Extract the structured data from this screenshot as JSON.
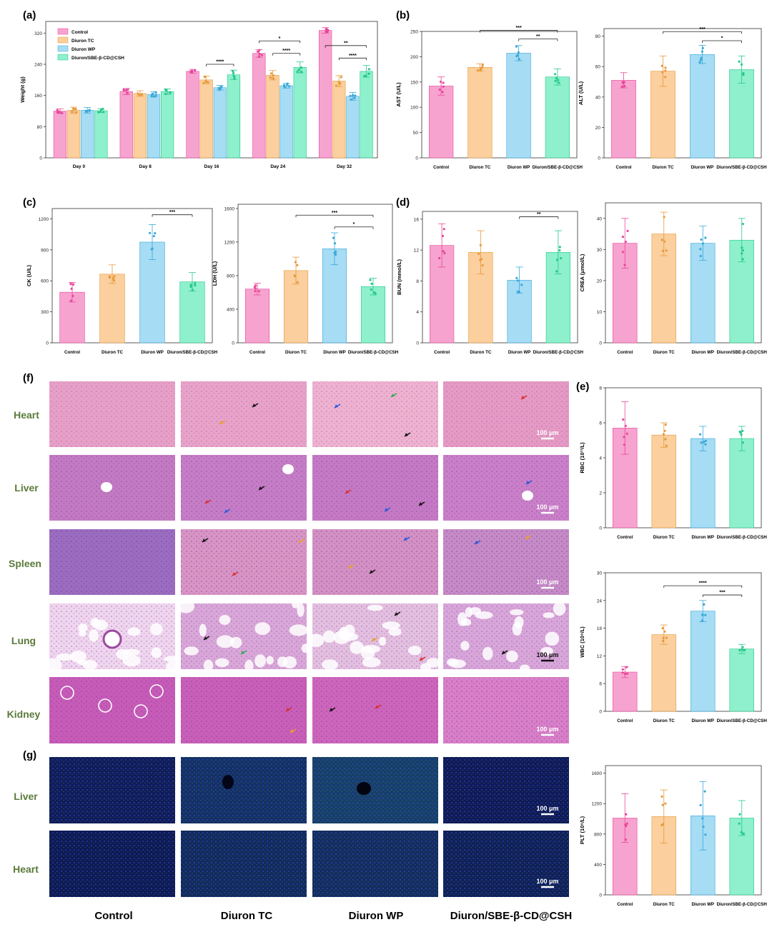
{
  "colors": {
    "Control": "#f7a3cf",
    "Diuron TC": "#fbcf9e",
    "Diuron WP": "#a6dcf4",
    "Diuron/SBE-β-CD@CSH": "#8ef0cc",
    "Control_dark": "#e8479a",
    "Diuron TC_dark": "#e79a3c",
    "Diuron WP_dark": "#3aa8d8",
    "Diuron/SBE-β-CD@CSH_dark": "#28c88c",
    "row_label": "#5a7a3a"
  },
  "panel_labels": {
    "a": "(a)",
    "b": "(b)",
    "c": "(c)",
    "d": "(d)",
    "e": "(e)",
    "f": "(f)",
    "g": "(g)"
  },
  "histology": {
    "tissues": [
      "Heart",
      "Liver",
      "Spleen",
      "Lung",
      "Kidney"
    ],
    "scale_bar": "100 μm",
    "note_scale_4": "100 μm"
  },
  "fluorescence": {
    "tissues": [
      "Liver",
      "Heart"
    ],
    "scale_bar": "100 μm"
  },
  "column_labels": [
    "Control",
    "Diuron TC",
    "Diuron WP",
    "Diuron/SBE-β-CD@CSH"
  ],
  "chart_data": [
    {
      "id": "weight",
      "type": "bar",
      "panel": "(a)",
      "ylabel": "Weight (g)",
      "ylim": [
        0,
        350
      ],
      "yticks": [
        0,
        80,
        160,
        240,
        320
      ],
      "categories": [
        "Day 0",
        "Day 8",
        "Day 16",
        "Day 24",
        "Day 32"
      ],
      "legend": "top-left",
      "series": [
        {
          "name": "Control",
          "values": [
            120,
            170,
            222,
            268,
            327
          ],
          "err": [
            6,
            8,
            5,
            10,
            7
          ]
        },
        {
          "name": "Diuron TC",
          "values": [
            122,
            165,
            200,
            212,
            197
          ],
          "err": [
            8,
            7,
            10,
            12,
            14
          ]
        },
        {
          "name": "Diuron WP",
          "values": [
            122,
            163,
            180,
            185,
            158
          ],
          "err": [
            7,
            7,
            6,
            6,
            10
          ]
        },
        {
          "name": "Diuron/SBE-β-CD@CSH",
          "values": [
            121,
            170,
            213,
            232,
            222
          ],
          "err": [
            5,
            7,
            12,
            14,
            15
          ]
        }
      ],
      "sig": [
        {
          "x1": 2.18,
          "x2": 2.42,
          "y": 240,
          "label": "****"
        },
        {
          "x1": 3.0,
          "x2": 3.42,
          "y": 300,
          "label": "*"
        },
        {
          "x1": 3.18,
          "x2": 3.42,
          "y": 268,
          "label": "****"
        },
        {
          "x1": 4.0,
          "x2": 4.42,
          "y": 288,
          "label": "**"
        },
        {
          "x1": 4.18,
          "x2": 4.42,
          "y": 256,
          "label": "****"
        }
      ]
    },
    {
      "id": "ast",
      "type": "bar",
      "panel": "(b)",
      "ylabel": "AST (U/L)",
      "ylim": [
        0,
        250
      ],
      "yticks": [
        0,
        50,
        100,
        150,
        200,
        250
      ],
      "categories": [
        "Control",
        "Diuron TC",
        "Diuron WP",
        "Diuron/SBE-β-CD@CSH"
      ],
      "values": [
        142,
        179,
        207,
        160
      ],
      "err": [
        18,
        7,
        15,
        16
      ],
      "sig": [
        {
          "a": 1,
          "b": 3,
          "y": 252,
          "label": "***"
        },
        {
          "a": 2,
          "b": 3,
          "y": 235,
          "label": "**"
        }
      ]
    },
    {
      "id": "alt",
      "type": "bar",
      "ylabel": "ALT (U/L)",
      "ylim": [
        0,
        85
      ],
      "yticks": [
        0,
        20,
        40,
        60,
        80
      ],
      "categories": [
        "Control",
        "Diuron TC",
        "Diuron WP",
        "Diuron/SBE-β-CD@CSH"
      ],
      "values": [
        51,
        57,
        68,
        58
      ],
      "err": [
        5,
        10,
        6,
        9
      ],
      "sig": [
        {
          "a": 1,
          "b": 3,
          "y": 83,
          "label": "***"
        },
        {
          "a": 2,
          "b": 3,
          "y": 77,
          "label": "*"
        }
      ]
    },
    {
      "id": "ck",
      "type": "bar",
      "panel": "(c)",
      "ylabel": "CK (U/L)",
      "ylim": [
        0,
        1300
      ],
      "yticks": [
        0,
        300,
        600,
        900,
        1200
      ],
      "categories": [
        "Control",
        "Diuron TC",
        "Diuron WP",
        "Diuron/SBE-β-CD@CSH"
      ],
      "values": [
        490,
        665,
        975,
        590
      ],
      "err": [
        95,
        90,
        170,
        90
      ],
      "sig": [
        {
          "a": 2,
          "b": 3,
          "y": 1240,
          "label": "***"
        }
      ]
    },
    {
      "id": "ldh",
      "type": "bar",
      "ylabel": "LDH (U/L)",
      "ylim": [
        0,
        1650
      ],
      "yticks": [
        0,
        400,
        800,
        1200,
        1600
      ],
      "categories": [
        "Control",
        "Diuron TC",
        "Diuron WP",
        "Diuron/SBE-β-CD@CSH"
      ],
      "values": [
        640,
        860,
        1120,
        670
      ],
      "err": [
        70,
        160,
        190,
        100
      ],
      "sig": [
        {
          "a": 1,
          "b": 3,
          "y": 1520,
          "label": "***"
        },
        {
          "a": 2,
          "b": 3,
          "y": 1380,
          "label": "*"
        }
      ]
    },
    {
      "id": "bun",
      "type": "bar",
      "panel": "(d)",
      "ylabel": "BUN (mmol/L)",
      "ylim": [
        0,
        17
      ],
      "yticks": [
        0,
        4,
        8,
        12,
        16
      ],
      "categories": [
        "Control",
        "Diuron TC",
        "Diuron WP",
        "Diuron/SBE-β-CD@CSH"
      ],
      "values": [
        12.6,
        11.7,
        8.1,
        11.7
      ],
      "err": [
        2.8,
        2.8,
        1.7,
        2.8
      ],
      "sig": [
        {
          "a": 2,
          "b": 3,
          "y": 16.3,
          "label": "**"
        }
      ]
    },
    {
      "id": "crea",
      "type": "bar",
      "ylabel": "CREA (μmol/L)",
      "ylim": [
        0,
        45
      ],
      "yticks": [
        0,
        10,
        20,
        30,
        40
      ],
      "categories": [
        "Control",
        "Diuron TC",
        "Diuron WP",
        "Diuron/SBE-β-CD@CSH"
      ],
      "values": [
        32,
        35,
        32,
        33
      ],
      "err": [
        8,
        7,
        5.5,
        7
      ]
    },
    {
      "id": "rbc",
      "type": "bar",
      "panel": "(e)",
      "ylabel": "RBC (10¹²/L)",
      "ylim": [
        0,
        8
      ],
      "yticks": [
        0,
        2,
        4,
        6,
        8
      ],
      "categories": [
        "Control",
        "Diuron TC",
        "Diuron WP",
        "Diuron/SBE-β-CD@CSH"
      ],
      "values": [
        5.7,
        5.3,
        5.1,
        5.1
      ],
      "err": [
        1.5,
        0.7,
        0.7,
        0.7
      ]
    },
    {
      "id": "wbc",
      "type": "bar",
      "ylabel": "WBC (10⁹/L)",
      "ylim": [
        0,
        30
      ],
      "yticks": [
        0,
        6,
        12,
        18,
        24,
        30
      ],
      "categories": [
        "Control",
        "Diuron TC",
        "Diuron WP",
        "Diuron/SBE-β-CD@CSH"
      ],
      "values": [
        8.5,
        16.6,
        21.7,
        13.5
      ],
      "err": [
        1.2,
        2.1,
        2.3,
        1.0
      ],
      "sig": [
        {
          "a": 1,
          "b": 3,
          "y": 27.2,
          "label": "****"
        },
        {
          "a": 2,
          "b": 3,
          "y": 25.2,
          "label": "***"
        }
      ]
    },
    {
      "id": "plt",
      "type": "bar",
      "ylabel": "PLT (10⁹/L)",
      "ylim": [
        0,
        1700
      ],
      "yticks": [
        0,
        400,
        800,
        1200,
        1600
      ],
      "categories": [
        "Control",
        "Diuron TC",
        "Diuron WP",
        "Diuron/SBE-β-CD@CSH"
      ],
      "values": [
        1010,
        1030,
        1040,
        1010
      ],
      "err": [
        320,
        350,
        450,
        230
      ]
    }
  ]
}
